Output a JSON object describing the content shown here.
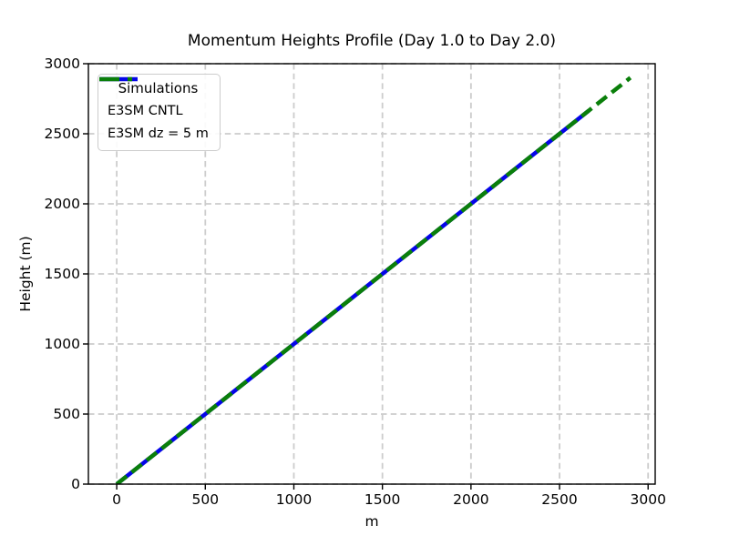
{
  "chart_data": {
    "type": "line",
    "title": "Momentum Heights Profile (Day 1.0 to Day 2.0)",
    "xlabel": "m",
    "ylabel": "Height (m)",
    "xlim": [
      -160,
      3040
    ],
    "ylim": [
      0,
      3000
    ],
    "xticks": [
      0,
      500,
      1000,
      1500,
      2000,
      2500,
      3000
    ],
    "yticks": [
      0,
      500,
      1000,
      1500,
      2000,
      2500,
      3000
    ],
    "grid": {
      "visible": true,
      "linestyle": "dashed",
      "color": "#cccccc"
    },
    "legend": {
      "title": "Simulations",
      "position": "upper-left"
    },
    "series": [
      {
        "name": "E3SM CNTL",
        "color": "#0505e8",
        "style": "solid",
        "linewidth": 4.5,
        "points": [
          [
            0,
            0
          ],
          [
            2665,
            2665
          ]
        ]
      },
      {
        "name": "E3SM dz = 5 m",
        "color": "#0a7f0a",
        "style": "dashed",
        "linewidth": 4.5,
        "points": [
          [
            0,
            0
          ],
          [
            2900,
            2900
          ]
        ]
      }
    ],
    "colors": {
      "spine": "#000000",
      "tick_label": "#000000",
      "background": "#ffffff"
    }
  }
}
